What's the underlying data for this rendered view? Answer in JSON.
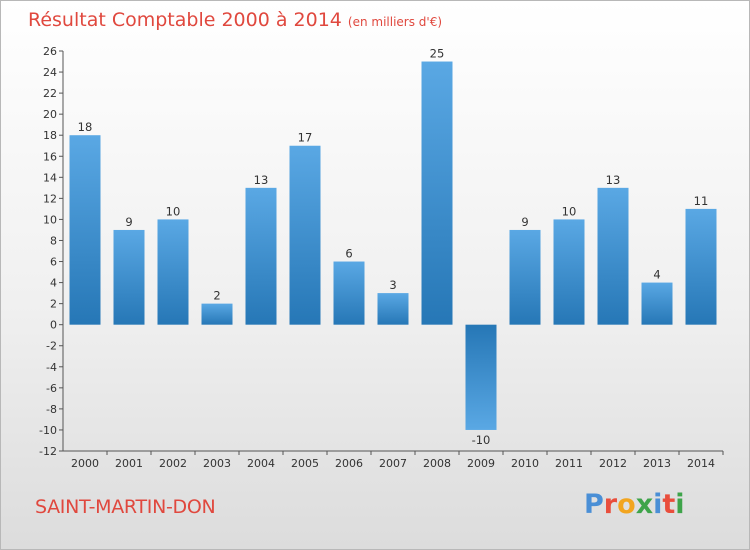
{
  "title": "Résultat Comptable 2000 à 2014",
  "unit": "(en milliers d'€)",
  "commune": "SAINT-MARTIN-DON",
  "logo": {
    "letters": [
      "P",
      "r",
      "o",
      "x",
      "i",
      "t",
      "i"
    ],
    "colors": [
      "#4a8fd6",
      "#e94e3c",
      "#f2a51f",
      "#3ea44a",
      "#4a8fd6",
      "#e94e3c",
      "#3ea44a"
    ]
  },
  "colors": {
    "bar_light": "#5aa8e4",
    "bar_dark": "#2677b6",
    "title": "#e0483e",
    "grid": "#c8c8c8"
  },
  "chart_data": {
    "type": "bar",
    "title": "Résultat Comptable 2000 à 2014",
    "ylabel": "en milliers d'€",
    "categories": [
      "2000",
      "2001",
      "2002",
      "2003",
      "2004",
      "2005",
      "2006",
      "2007",
      "2008",
      "2009",
      "2010",
      "2011",
      "2012",
      "2013",
      "2014"
    ],
    "values": [
      18,
      9,
      10,
      2,
      13,
      17,
      6,
      3,
      25,
      -10,
      9,
      10,
      13,
      4,
      11
    ],
    "value_labels": [
      "18",
      "9",
      "10",
      "2",
      "13",
      "17",
      "6",
      "3",
      "25",
      "-10",
      "9",
      "10",
      "13",
      "4",
      "11"
    ],
    "ylim": [
      -12,
      26
    ],
    "yticks": [
      26,
      24,
      22,
      20,
      18,
      16,
      14,
      12,
      10,
      8,
      6,
      4,
      2,
      0,
      -2,
      -4,
      -6,
      -8,
      -10,
      -12
    ],
    "ytick_labels": [
      "26",
      "24",
      "22",
      "20",
      "18",
      "16",
      "14",
      "12",
      "10",
      "8",
      "6",
      "4",
      "2",
      "0",
      "-2",
      "-4",
      "-6",
      "-8",
      "-10",
      "-12"
    ],
    "grid": false
  }
}
